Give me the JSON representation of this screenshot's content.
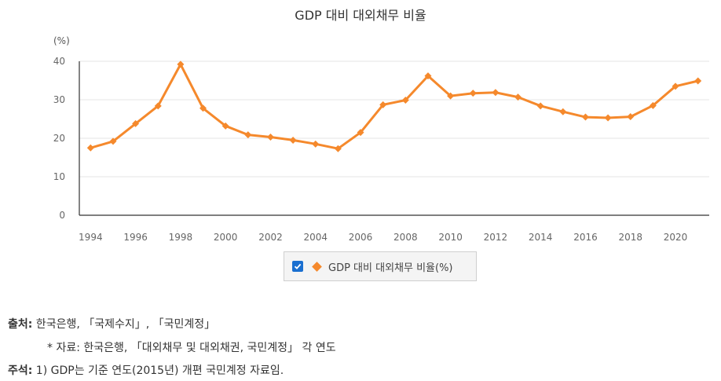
{
  "chart_data": {
    "type": "line",
    "title": "GDP 대비 대외채무 비율",
    "y_unit": "(%)",
    "ylim": [
      0,
      40
    ],
    "y_ticks": [
      0,
      10,
      20,
      30,
      40
    ],
    "x_ticks": [
      1994,
      1996,
      1998,
      2000,
      2002,
      2004,
      2006,
      2008,
      2010,
      2012,
      2014,
      2016,
      2018,
      2020
    ],
    "x": [
      1994,
      1995,
      1996,
      1997,
      1998,
      1999,
      2000,
      2001,
      2002,
      2003,
      2004,
      2005,
      2006,
      2007,
      2008,
      2009,
      2010,
      2011,
      2012,
      2013,
      2014,
      2015,
      2016,
      2017,
      2018,
      2019,
      2020,
      2021
    ],
    "series": [
      {
        "name": "GDP 대비 대외채무 비율(%)",
        "color": "#f5892c",
        "values": [
          17.5,
          19.2,
          23.8,
          28.4,
          39.2,
          27.8,
          23.2,
          20.9,
          20.3,
          19.5,
          18.5,
          17.3,
          21.5,
          28.7,
          29.9,
          36.2,
          31.0,
          31.7,
          31.9,
          30.7,
          28.4,
          26.9,
          25.5,
          25.3,
          25.6,
          28.5,
          33.5,
          34.9
        ]
      }
    ],
    "grid": true,
    "legend_position": "bottom"
  },
  "legend": {
    "checked": true,
    "label": "GDP 대비 대외채무 비율(%)"
  },
  "notes": {
    "source_label": "출처:",
    "source_text": " 한국은행, 「국제수지」, 「국민계정」",
    "data_text": "* 자료: 한국은행, 「대외채무 및 대외채권, 국민계정」 각 연도",
    "note_label": "주석:",
    "note_text": " 1) GDP는 기준 연도(2015년) 개편 국민계정 자료임."
  }
}
